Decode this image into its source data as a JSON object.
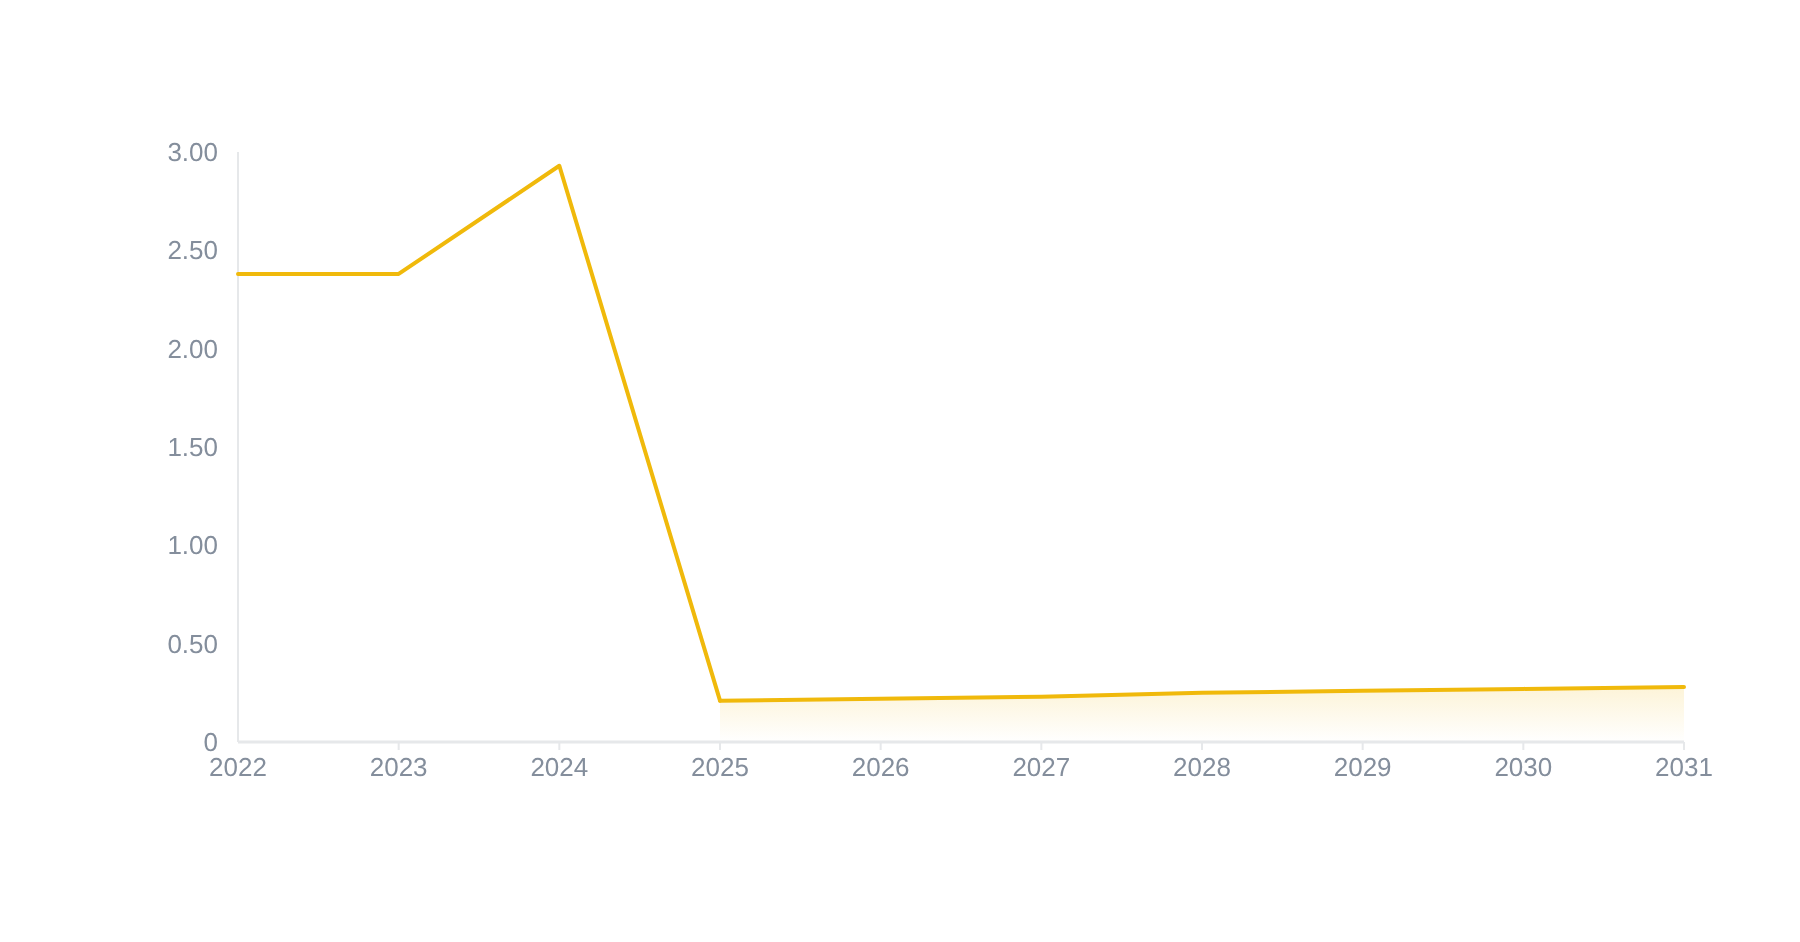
{
  "chart_data": {
    "type": "line",
    "categories": [
      "2022",
      "2023",
      "2024",
      "2025",
      "2026",
      "2027",
      "2028",
      "2029",
      "2030",
      "2031"
    ],
    "series": [
      {
        "color": "#f0b90b",
        "values": [
          2.38,
          2.38,
          2.93,
          0.21,
          null,
          null,
          null,
          null,
          null,
          null
        ]
      },
      {
        "type": "area",
        "color": "#f0b90b",
        "values": [
          null,
          null,
          null,
          0.21,
          0.22,
          0.23,
          0.25,
          0.26,
          0.27,
          0.28
        ]
      }
    ],
    "ylim": [
      0,
      3
    ],
    "yticks": [
      0,
      {
        "value": 0.5,
        "label": "0.50"
      },
      {
        "value": 1,
        "label": "1.00"
      },
      {
        "value": 1.5,
        "label": "1.50"
      },
      {
        "value": 2,
        "label": "2.00"
      },
      {
        "value": 2.5,
        "label": "2.50"
      },
      {
        "value": 3,
        "label": "3.00"
      }
    ]
  }
}
